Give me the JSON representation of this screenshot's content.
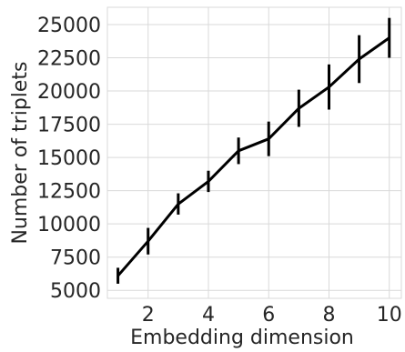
{
  "chart_data": {
    "type": "line",
    "title": "",
    "xlabel": "Embedding dimension",
    "ylabel": "Number of triplets",
    "x": [
      1,
      2,
      3,
      4,
      5,
      6,
      7,
      8,
      9,
      10
    ],
    "y": [
      6100,
      8700,
      11500,
      13200,
      15500,
      16400,
      18700,
      20300,
      22400,
      24000
    ],
    "error": [
      600,
      1000,
      800,
      800,
      1000,
      1300,
      1400,
      1700,
      1800,
      1500
    ],
    "xlim": [
      0.65,
      10.4
    ],
    "ylim": [
      4400,
      26300
    ],
    "xticks": [
      2,
      4,
      6,
      8,
      10
    ],
    "xtick_labels": [
      "2",
      "4",
      "6",
      "8",
      "10"
    ],
    "yticks": [
      5000,
      7500,
      10000,
      12500,
      15000,
      17500,
      20000,
      22500,
      25000
    ],
    "ytick_labels": [
      "5000",
      "7500",
      "10000",
      "12500",
      "15000",
      "17500",
      "20000",
      "22500",
      "25000"
    ],
    "grid": true,
    "line_color": "#000000",
    "grid_color": "#d9d9d9",
    "text_color": "#262626"
  }
}
